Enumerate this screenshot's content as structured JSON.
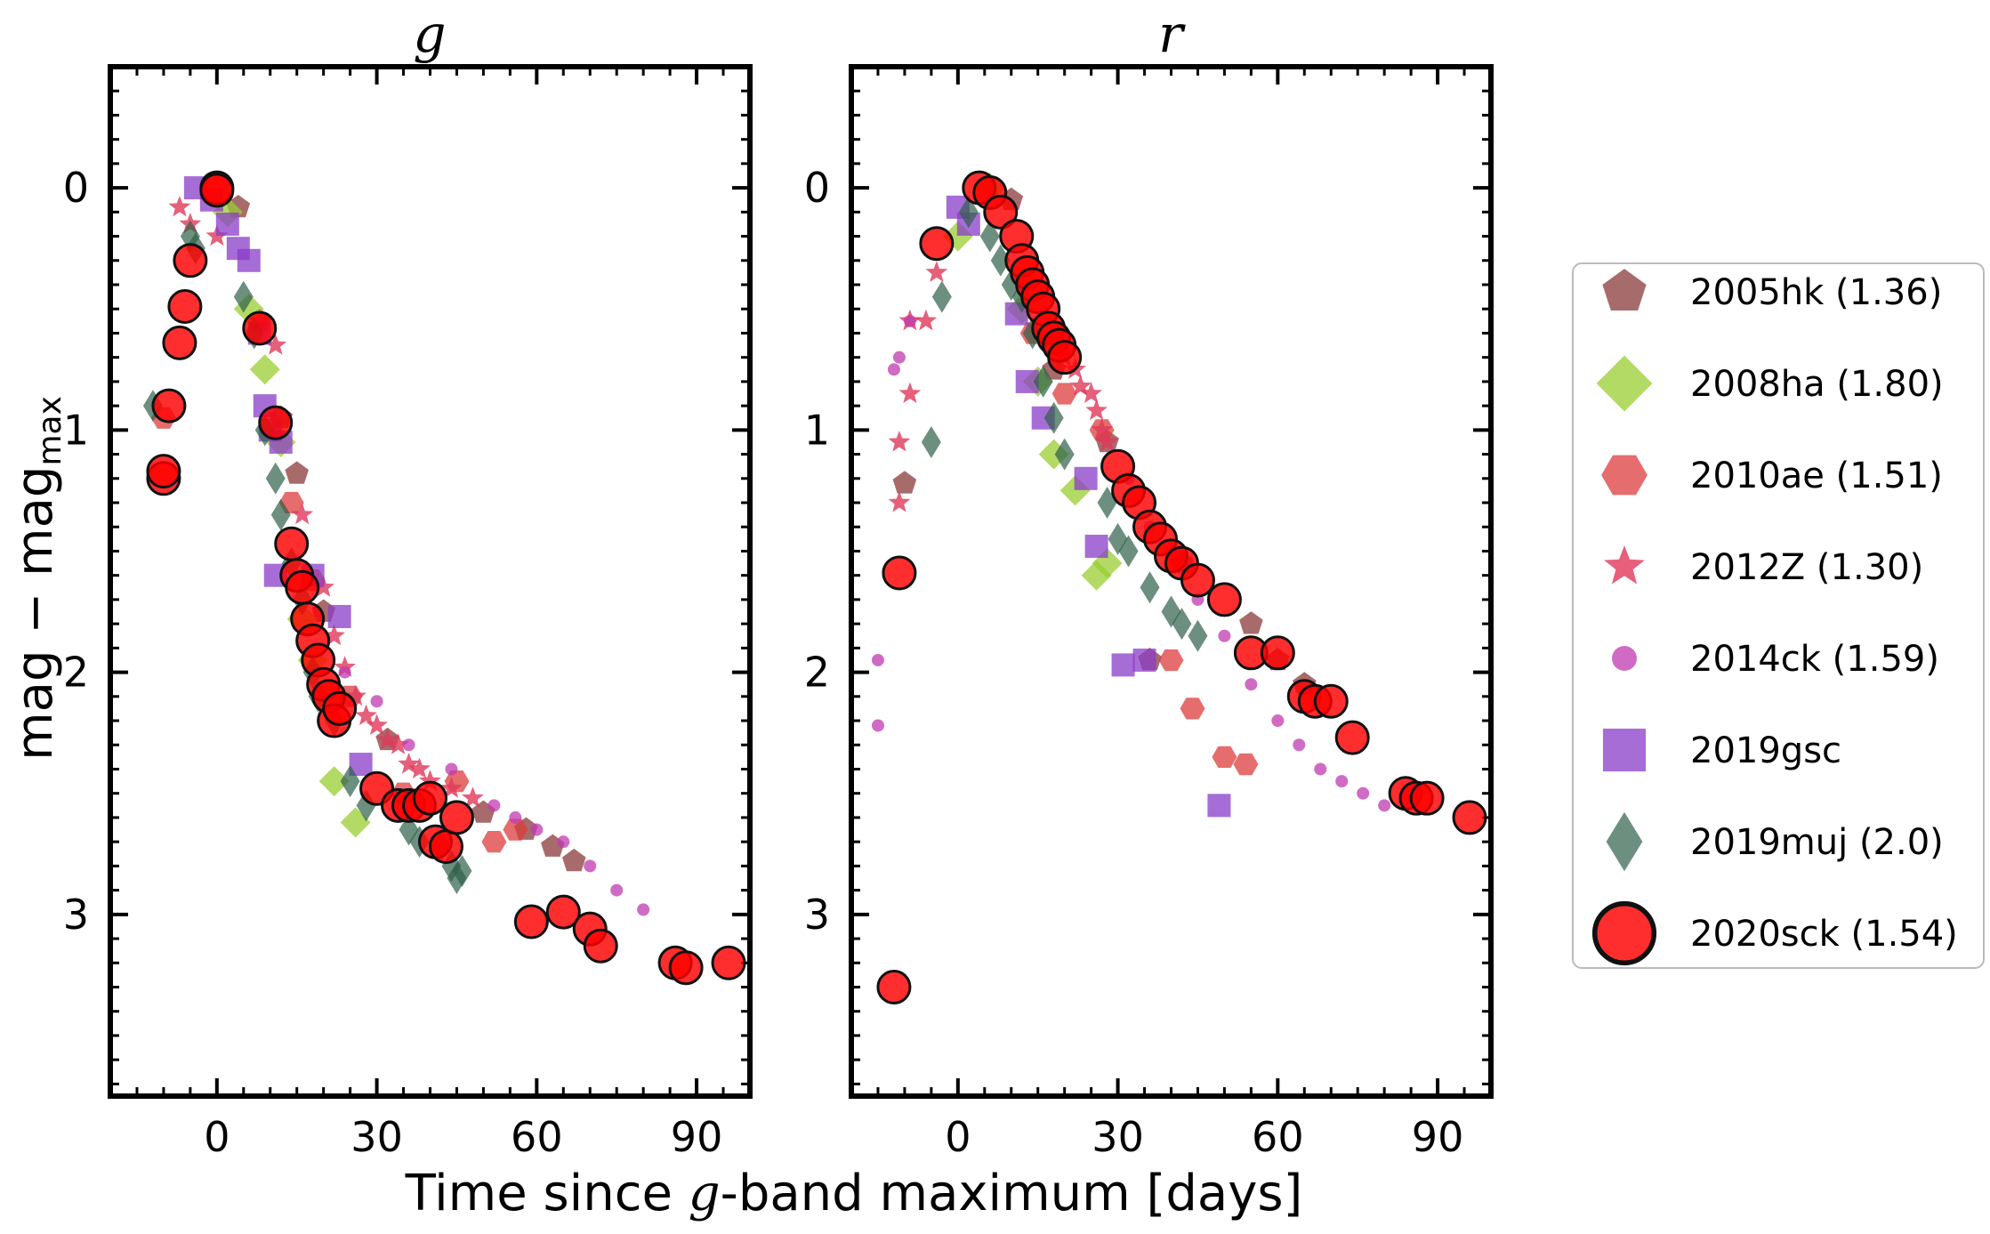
{
  "chart_data": {
    "type": "scatter",
    "ylabel": "mag − mag",
    "ylabel_sub": "max",
    "xlabel_pre": "Time since ",
    "xlabel_em": "g",
    "xlabel_post": "-band maximum [days]",
    "xlim": [
      -20,
      100
    ],
    "ylim": [
      3.75,
      -0.5
    ],
    "xticks": [
      0,
      30,
      60,
      90
    ],
    "yticks": [
      0,
      1,
      2,
      3
    ],
    "grid": false,
    "legend_position": "right",
    "series": [
      {
        "name": "2005hk (1.36)",
        "marker": "pentagon",
        "color": "#8b3a3a"
      },
      {
        "name": "2008ha (1.80)",
        "marker": "diamond",
        "color": "#9acd32"
      },
      {
        "name": "2010ae (1.51)",
        "marker": "hexagon",
        "color": "#dc3c3c"
      },
      {
        "name": "2012Z (1.30)",
        "marker": "star",
        "color": "#e0385a"
      },
      {
        "name": "2014ck (1.59)",
        "marker": "circle",
        "color": "#c03ab0"
      },
      {
        "name": "2019gsc",
        "marker": "square",
        "color": "#8a3cc8"
      },
      {
        "name": "2019muj (2.0)",
        "marker": "thin-diamond",
        "color": "#2f5f48"
      },
      {
        "name": "2020sck (1.54)",
        "marker": "big-circle",
        "color": "#ff0000"
      }
    ],
    "panels": [
      {
        "title": "g",
        "points": {
          "2005hk (1.36)": [
            [
              4,
              0.08
            ],
            [
              8,
              0.55
            ],
            [
              12,
              0.95
            ],
            [
              15,
              1.18
            ],
            [
              20,
              1.75
            ],
            [
              32,
              2.28
            ],
            [
              50,
              2.58
            ],
            [
              58,
              2.65
            ],
            [
              63,
              2.72
            ],
            [
              67,
              2.78
            ]
          ],
          "2008ha (1.80)": [
            [
              2,
              0.1
            ],
            [
              6,
              0.5
            ],
            [
              9,
              0.75
            ],
            [
              12,
              1.05
            ],
            [
              16,
              1.78
            ],
            [
              18,
              1.95
            ],
            [
              22,
              2.45
            ],
            [
              26,
              2.62
            ]
          ],
          "2010ae (1.51)": [
            [
              -10,
              0.95
            ],
            [
              14,
              1.3
            ],
            [
              18,
              1.62
            ],
            [
              25,
              2.1
            ],
            [
              35,
              2.5
            ],
            [
              45,
              2.45
            ],
            [
              52,
              2.7
            ],
            [
              56,
              2.65
            ]
          ],
          "2012Z (1.30)": [
            [
              -7,
              0.08
            ],
            [
              -5,
              0.15
            ],
            [
              0,
              0.2
            ],
            [
              8,
              0.55
            ],
            [
              11,
              0.65
            ],
            [
              16,
              1.35
            ],
            [
              20,
              1.65
            ],
            [
              22,
              1.85
            ],
            [
              24,
              1.98
            ],
            [
              26,
              2.1
            ],
            [
              28,
              2.18
            ],
            [
              30,
              2.22
            ],
            [
              32,
              2.28
            ],
            [
              34,
              2.3
            ],
            [
              36,
              2.38
            ],
            [
              38,
              2.4
            ],
            [
              40,
              2.45
            ],
            [
              44,
              2.48
            ],
            [
              48,
              2.52
            ]
          ],
          "2014ck (1.59)": [
            [
              24,
              2.0
            ],
            [
              30,
              2.12
            ],
            [
              36,
              2.3
            ],
            [
              44,
              2.4
            ],
            [
              52,
              2.55
            ],
            [
              56,
              2.6
            ],
            [
              60,
              2.65
            ],
            [
              65,
              2.7
            ],
            [
              70,
              2.8
            ],
            [
              75,
              2.9
            ],
            [
              80,
              2.98
            ]
          ],
          "2019gsc": [
            [
              -4,
              0.0
            ],
            [
              -1,
              0.05
            ],
            [
              2,
              0.15
            ],
            [
              4,
              0.25
            ],
            [
              6,
              0.3
            ],
            [
              8,
              0.6
            ],
            [
              9,
              0.9
            ],
            [
              10,
              1.0
            ],
            [
              12,
              1.05
            ],
            [
              11,
              1.6
            ],
            [
              18,
              1.6
            ],
            [
              23,
              1.77
            ],
            [
              27,
              2.38
            ]
          ],
          "2019muj (2.0)": [
            [
              -5,
              0.2
            ],
            [
              -4,
              0.25
            ],
            [
              -12,
              0.9
            ],
            [
              5,
              0.45
            ],
            [
              7,
              0.6
            ],
            [
              9,
              1.0
            ],
            [
              11,
              1.2
            ],
            [
              12,
              1.35
            ],
            [
              14,
              1.55
            ],
            [
              16,
              1.7
            ],
            [
              18,
              2.0
            ],
            [
              19,
              2.1
            ],
            [
              22,
              2.2
            ],
            [
              25,
              2.45
            ],
            [
              28,
              2.55
            ],
            [
              36,
              2.65
            ],
            [
              38,
              2.7
            ],
            [
              42,
              2.72
            ],
            [
              44,
              2.8
            ],
            [
              45,
              2.85
            ],
            [
              46,
              2.82
            ]
          ],
          "2020sck (1.54)": [
            [
              -10,
              1.2
            ],
            [
              -10,
              1.17
            ],
            [
              -9,
              0.9
            ],
            [
              -7,
              0.64
            ],
            [
              -6,
              0.49
            ],
            [
              -5,
              0.3
            ],
            [
              0,
              0.0
            ],
            [
              0,
              0.01
            ],
            [
              8,
              0.58
            ],
            [
              11,
              0.97
            ],
            [
              14,
              1.47
            ],
            [
              15,
              1.6
            ],
            [
              16,
              1.65
            ],
            [
              17,
              1.78
            ],
            [
              18,
              1.87
            ],
            [
              19,
              1.95
            ],
            [
              20,
              2.05
            ],
            [
              21,
              2.1
            ],
            [
              22,
              2.2
            ],
            [
              23,
              2.15
            ],
            [
              30,
              2.48
            ],
            [
              34,
              2.55
            ],
            [
              36,
              2.55
            ],
            [
              38,
              2.55
            ],
            [
              40,
              2.52
            ],
            [
              41,
              2.7
            ],
            [
              43,
              2.72
            ],
            [
              45,
              2.6
            ],
            [
              59,
              3.03
            ],
            [
              65,
              2.99
            ],
            [
              70,
              3.06
            ],
            [
              72,
              3.13
            ],
            [
              86,
              3.2
            ],
            [
              88,
              3.22
            ],
            [
              96,
              3.2
            ]
          ]
        }
      },
      {
        "title": "r",
        "points": {
          "2005hk (1.36)": [
            [
              -10,
              1.22
            ],
            [
              10,
              0.05
            ],
            [
              18,
              0.75
            ],
            [
              28,
              1.05
            ],
            [
              36,
              1.95
            ],
            [
              42,
              1.55
            ],
            [
              55,
              1.8
            ],
            [
              60,
              1.95
            ],
            [
              65,
              2.05
            ]
          ],
          "2008ha (1.80)": [
            [
              0,
              0.2
            ],
            [
              6,
              0.0
            ],
            [
              12,
              0.5
            ],
            [
              15,
              0.8
            ],
            [
              18,
              1.1
            ],
            [
              22,
              1.25
            ],
            [
              26,
              1.6
            ],
            [
              28,
              1.55
            ]
          ],
          "2010ae (1.51)": [
            [
              14,
              0.6
            ],
            [
              20,
              0.85
            ],
            [
              27,
              1.0
            ],
            [
              40,
              1.95
            ],
            [
              44,
              2.15
            ],
            [
              50,
              2.35
            ],
            [
              54,
              2.38
            ]
          ],
          "2012Z (1.30)": [
            [
              -9,
              0.55
            ],
            [
              -11,
              1.05
            ],
            [
              -11,
              1.3
            ],
            [
              -9,
              0.85
            ],
            [
              -6,
              0.55
            ],
            [
              -4,
              0.35
            ],
            [
              20,
              0.7
            ],
            [
              22,
              0.75
            ],
            [
              23,
              0.82
            ],
            [
              25,
              0.85
            ],
            [
              26,
              0.92
            ],
            [
              27,
              1.0
            ],
            [
              28,
              1.05
            ]
          ],
          "2014ck (1.59)": [
            [
              -15,
              1.95
            ],
            [
              -15,
              2.22
            ],
            [
              -12,
              0.75
            ],
            [
              -11,
              0.7
            ],
            [
              -9,
              0.55
            ],
            [
              32,
              1.2
            ],
            [
              36,
              1.4
            ],
            [
              40,
              1.5
            ],
            [
              45,
              1.7
            ],
            [
              50,
              1.85
            ],
            [
              55,
              2.05
            ],
            [
              60,
              2.2
            ],
            [
              64,
              2.3
            ],
            [
              68,
              2.4
            ],
            [
              72,
              2.45
            ],
            [
              76,
              2.5
            ],
            [
              80,
              2.55
            ]
          ],
          "2019gsc": [
            [
              0,
              0.08
            ],
            [
              2,
              0.15
            ],
            [
              11,
              0.52
            ],
            [
              13,
              0.8
            ],
            [
              16,
              0.95
            ],
            [
              24,
              1.2
            ],
            [
              26,
              1.48
            ],
            [
              31,
              1.97
            ],
            [
              35,
              1.95
            ],
            [
              49,
              2.55
            ]
          ],
          "2019muj (2.0)": [
            [
              -5,
              1.05
            ],
            [
              -3,
              0.45
            ],
            [
              2,
              0.1
            ],
            [
              6,
              0.2
            ],
            [
              8,
              0.3
            ],
            [
              10,
              0.4
            ],
            [
              12,
              0.45
            ],
            [
              14,
              0.6
            ],
            [
              16,
              0.8
            ],
            [
              18,
              0.95
            ],
            [
              20,
              1.1
            ],
            [
              28,
              1.3
            ],
            [
              30,
              1.45
            ],
            [
              32,
              1.5
            ],
            [
              36,
              1.65
            ],
            [
              40,
              1.75
            ],
            [
              42,
              1.8
            ],
            [
              45,
              1.85
            ]
          ],
          "2020sck (1.54)": [
            [
              -12,
              3.3
            ],
            [
              -11,
              1.59
            ],
            [
              -4,
              0.23
            ],
            [
              4,
              0.0
            ],
            [
              6,
              0.02
            ],
            [
              8,
              0.1
            ],
            [
              11,
              0.2
            ],
            [
              12,
              0.3
            ],
            [
              13,
              0.35
            ],
            [
              14,
              0.4
            ],
            [
              15,
              0.45
            ],
            [
              16,
              0.5
            ],
            [
              17,
              0.58
            ],
            [
              18,
              0.62
            ],
            [
              19,
              0.65
            ],
            [
              20,
              0.7
            ],
            [
              30,
              1.15
            ],
            [
              32,
              1.25
            ],
            [
              34,
              1.3
            ],
            [
              36,
              1.4
            ],
            [
              38,
              1.45
            ],
            [
              40,
              1.52
            ],
            [
              42,
              1.55
            ],
            [
              45,
              1.62
            ],
            [
              50,
              1.7
            ],
            [
              55,
              1.92
            ],
            [
              60,
              1.92
            ],
            [
              65,
              2.1
            ],
            [
              67,
              2.12
            ],
            [
              70,
              2.12
            ],
            [
              74,
              2.27
            ],
            [
              84,
              2.5
            ],
            [
              86,
              2.52
            ],
            [
              88,
              2.52
            ],
            [
              96,
              2.6
            ]
          ]
        }
      }
    ]
  }
}
